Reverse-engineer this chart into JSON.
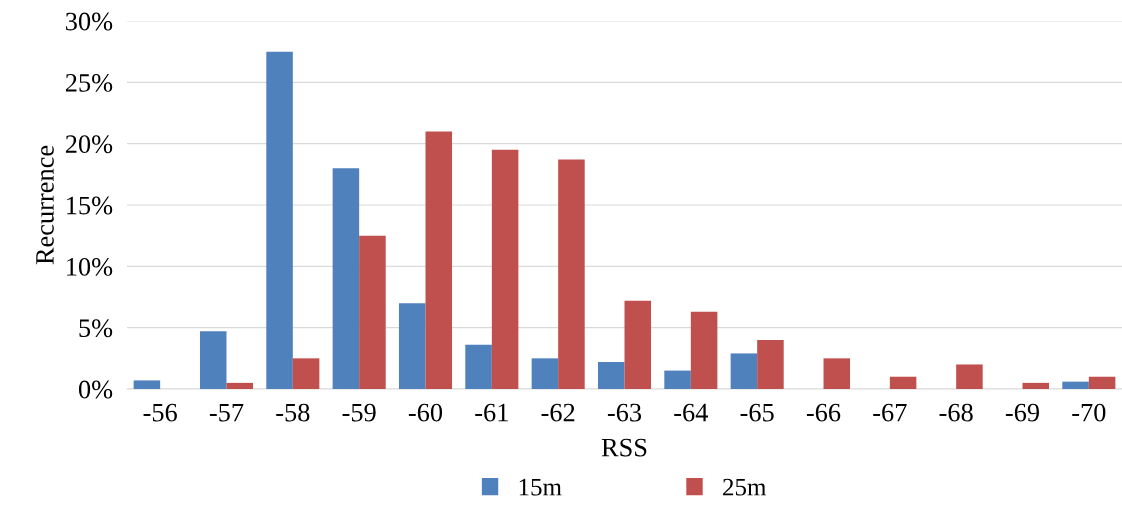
{
  "chart_data": {
    "type": "bar",
    "xlabel": "RSS",
    "ylabel": "Recurrence",
    "categories": [
      "-56",
      "-57",
      "-58",
      "-59",
      "-60",
      "-61",
      "-62",
      "-63",
      "-64",
      "-65",
      "-66",
      "-67",
      "-68",
      "-69",
      "-70"
    ],
    "series": [
      {
        "name": "15m",
        "color": "#4f81bd",
        "values": [
          0.7,
          4.7,
          27.5,
          18,
          7,
          3.6,
          2.5,
          2.2,
          1.5,
          2.9,
          0,
          0,
          0,
          0,
          0.6
        ]
      },
      {
        "name": "25m",
        "color": "#c0504d",
        "values": [
          0,
          0.5,
          2.5,
          12.5,
          21,
          19.5,
          18.7,
          7.2,
          6.3,
          4,
          2.5,
          1,
          2,
          0.5,
          1
        ]
      }
    ],
    "ylim": [
      0,
      30
    ],
    "yticks": [
      {
        "value": 0,
        "label": "0%"
      },
      {
        "value": 5,
        "label": "5%"
      },
      {
        "value": 10,
        "label": "10%"
      },
      {
        "value": 15,
        "label": "15%"
      },
      {
        "value": 20,
        "label": "20%"
      },
      {
        "value": 25,
        "label": "25%"
      },
      {
        "value": 30,
        "label": "30%"
      }
    ],
    "grid": "y",
    "legend": "bottom"
  }
}
